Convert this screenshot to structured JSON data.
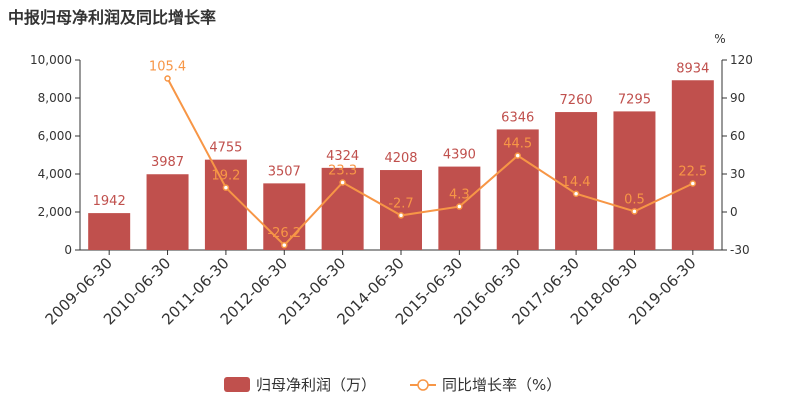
{
  "title": "中报归母净利润及同比增长率",
  "chart_data": {
    "type": "bar",
    "title": "中报归母净利润及同比增长率",
    "categories": [
      "2009-06-30",
      "2010-06-30",
      "2011-06-30",
      "2012-06-30",
      "2013-06-30",
      "2014-06-30",
      "2015-06-30",
      "2016-06-30",
      "2017-06-30",
      "2018-06-30",
      "2019-06-30"
    ],
    "series": [
      {
        "name": "归母净利润（万）",
        "type": "bar",
        "axis": "left",
        "color": "#c0504d",
        "values": [
          1942,
          3987,
          4755,
          3507,
          4324,
          4208,
          4390,
          6346,
          7260,
          7295,
          8934
        ],
        "labels": [
          "1942",
          "3987",
          "4755",
          "3507",
          "4324",
          "4208",
          "4390",
          "6346",
          "7260",
          "7295",
          "8934"
        ]
      },
      {
        "name": "同比增长率（%）",
        "type": "line",
        "axis": "right",
        "color": "#f79646",
        "values": [
          null,
          105.4,
          19.2,
          -26.2,
          23.3,
          -2.7,
          4.3,
          44.5,
          14.4,
          0.5,
          22.5
        ],
        "labels": [
          "",
          "105.4",
          "19.2",
          "-26.2",
          "23.3",
          "-2.7",
          "4.3",
          "44.5",
          "14.4",
          "0.5",
          "22.5"
        ]
      }
    ],
    "left_axis": {
      "ylim": [
        0,
        10000
      ],
      "ticks": [
        0,
        2000,
        4000,
        6000,
        8000,
        10000
      ],
      "tick_labels": [
        "0",
        "2,000",
        "4,000",
        "6,000",
        "8,000",
        "10,000"
      ]
    },
    "right_axis": {
      "unit": "%",
      "ylim": [
        -30,
        120
      ],
      "ticks": [
        -30,
        0,
        30,
        60,
        90,
        120
      ],
      "tick_labels": [
        "-30",
        "0",
        "30",
        "60",
        "90",
        "120"
      ]
    },
    "grid": false,
    "legend_position": "bottom"
  }
}
